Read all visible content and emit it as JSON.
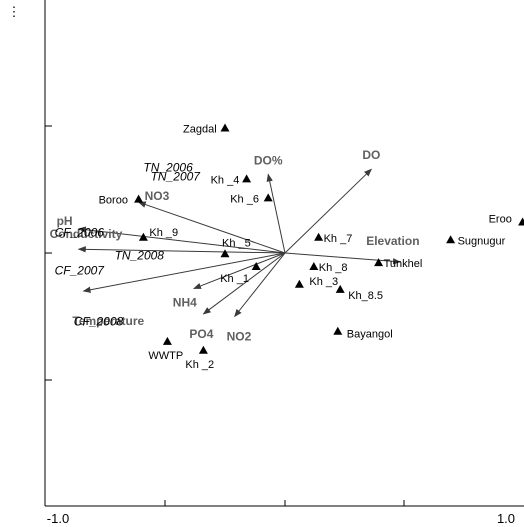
{
  "chart_data": {
    "type": "scatter",
    "subtype": "ordination-biplot",
    "title": "",
    "xlabel": "",
    "ylabel": "",
    "xlim": [
      -1.0,
      1.0
    ],
    "ylim": [
      -1.1,
      1.1
    ],
    "grid": false,
    "x_tick_labels": [
      "-1.0",
      "1.0"
    ],
    "sites": [
      {
        "name": "Zagdal",
        "x": -0.5,
        "y": 0.98
      },
      {
        "name": "Kh _4",
        "x": -0.32,
        "y": 0.58
      },
      {
        "name": "Boroo",
        "x": -1.22,
        "y": 0.42
      },
      {
        "name": "Kh _6",
        "x": -0.14,
        "y": 0.43
      },
      {
        "name": "Eroo",
        "x": 1.98,
        "y": 0.24
      },
      {
        "name": "Kh _9",
        "x": -1.18,
        "y": 0.12
      },
      {
        "name": "Kh _7",
        "x": 0.28,
        "y": 0.12
      },
      {
        "name": "Sugnugur",
        "x": 1.38,
        "y": 0.1
      },
      {
        "name": "Kh _5",
        "x": -0.5,
        "y": -0.01
      },
      {
        "name": "Tunkhel",
        "x": 0.78,
        "y": -0.08
      },
      {
        "name": "Kh _8",
        "x": 0.24,
        "y": -0.11
      },
      {
        "name": "Kh _1",
        "x": -0.24,
        "y": -0.11
      },
      {
        "name": "Kh _3",
        "x": 0.12,
        "y": -0.25
      },
      {
        "name": "Kh_8.5",
        "x": 0.46,
        "y": -0.29
      },
      {
        "name": "Bayangol",
        "x": 0.44,
        "y": -0.62
      },
      {
        "name": "WWTP",
        "x": -0.98,
        "y": -0.7
      },
      {
        "name": "Kh _2",
        "x": -0.68,
        "y": -0.77
      }
    ],
    "vectors": [
      {
        "name": "DO",
        "x": 0.72,
        "y": 0.66
      },
      {
        "name": "DO%",
        "x": -0.14,
        "y": 0.62
      },
      {
        "name": "NO3",
        "x": -1.22,
        "y": 0.4
      },
      {
        "name": "pH",
        "x": -1.72,
        "y": 0.19
      },
      {
        "name": "Conductivity",
        "x": -1.72,
        "y": 0.03
      },
      {
        "name": "Elevation",
        "x": 0.96,
        "y": -0.07
      },
      {
        "name": "Temperature",
        "x": -1.68,
        "y": -0.3
      },
      {
        "name": "NH4",
        "x": -0.76,
        "y": -0.28
      },
      {
        "name": "PO4",
        "x": -0.68,
        "y": -0.48
      },
      {
        "name": "NO2",
        "x": -0.42,
        "y": -0.5
      }
    ],
    "year_labels": [
      {
        "name": "TN_2006",
        "x": -1.18,
        "y": 0.64
      },
      {
        "name": "TN_2007",
        "x": -1.12,
        "y": 0.57
      },
      {
        "name": "CF_2006",
        "x": -1.92,
        "y": 0.13
      },
      {
        "name": "TN_2008",
        "x": -1.42,
        "y": -0.05
      },
      {
        "name": "CF_2007",
        "x": -1.92,
        "y": -0.17
      },
      {
        "name": "CF_2008",
        "x": -1.76,
        "y": -0.57
      }
    ],
    "left_axis_marker": "⋮"
  }
}
